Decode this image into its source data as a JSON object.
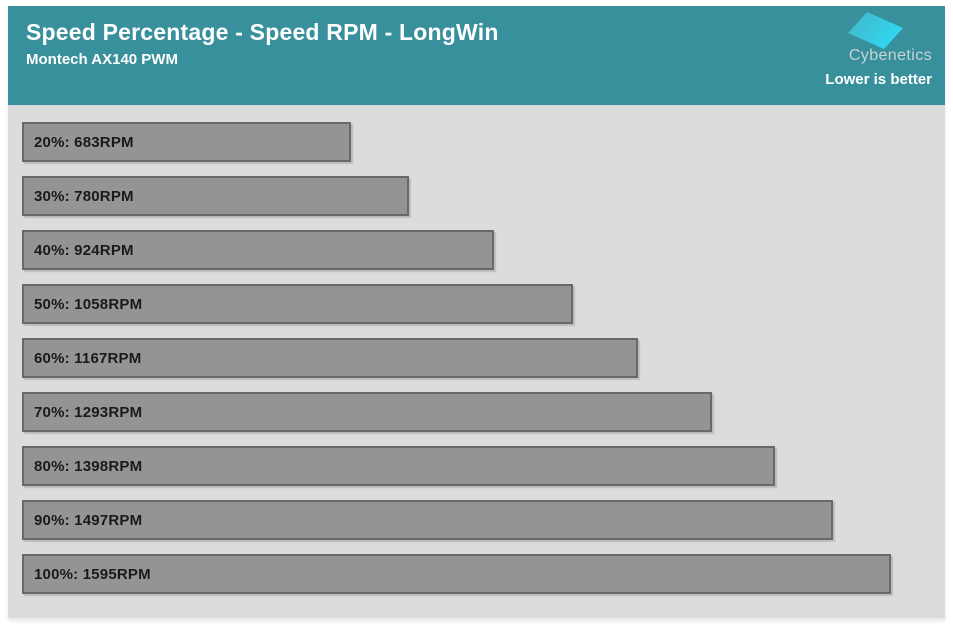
{
  "header": {
    "title": "Speed Percentage - Speed RPM - LongWin",
    "subtitle": "Montech AX140 PWM",
    "brand": "Cybenetics",
    "note": "Lower is better"
  },
  "colors": {
    "header_bg": "#37909c",
    "chart_bg": "#dcdcdc",
    "bar_fill": "#949494",
    "bar_border": "#696969",
    "bar_label": "#1a1a1a",
    "brand_text": "#c9d4d6",
    "note_text": "#ffffff",
    "logo_gradient_start": "#45b3c6",
    "logo_gradient_end": "#2fd9f2"
  },
  "chart_data": {
    "type": "bar",
    "orientation": "horizontal",
    "title": "Speed Percentage - Speed RPM - LongWin",
    "subtitle": "Montech AX140 PWM",
    "categories": [
      "20%",
      "30%",
      "40%",
      "50%",
      "60%",
      "70%",
      "80%",
      "90%",
      "100%"
    ],
    "values": [
      683,
      780,
      924,
      1058,
      1167,
      1293,
      1398,
      1497,
      1595
    ],
    "unit": "RPM",
    "labels": [
      "20%: 683RPM",
      "30%: 780RPM",
      "40%: 924RPM",
      "50%: 1058RPM",
      "60%: 1167RPM",
      "70%: 1293RPM",
      "80%: 1398RPM",
      "90%: 1497RPM",
      "100%: 1595RPM"
    ],
    "xlim": [
      127,
      1662
    ],
    "grid": false,
    "legend": false,
    "annotation": "Lower is better"
  }
}
